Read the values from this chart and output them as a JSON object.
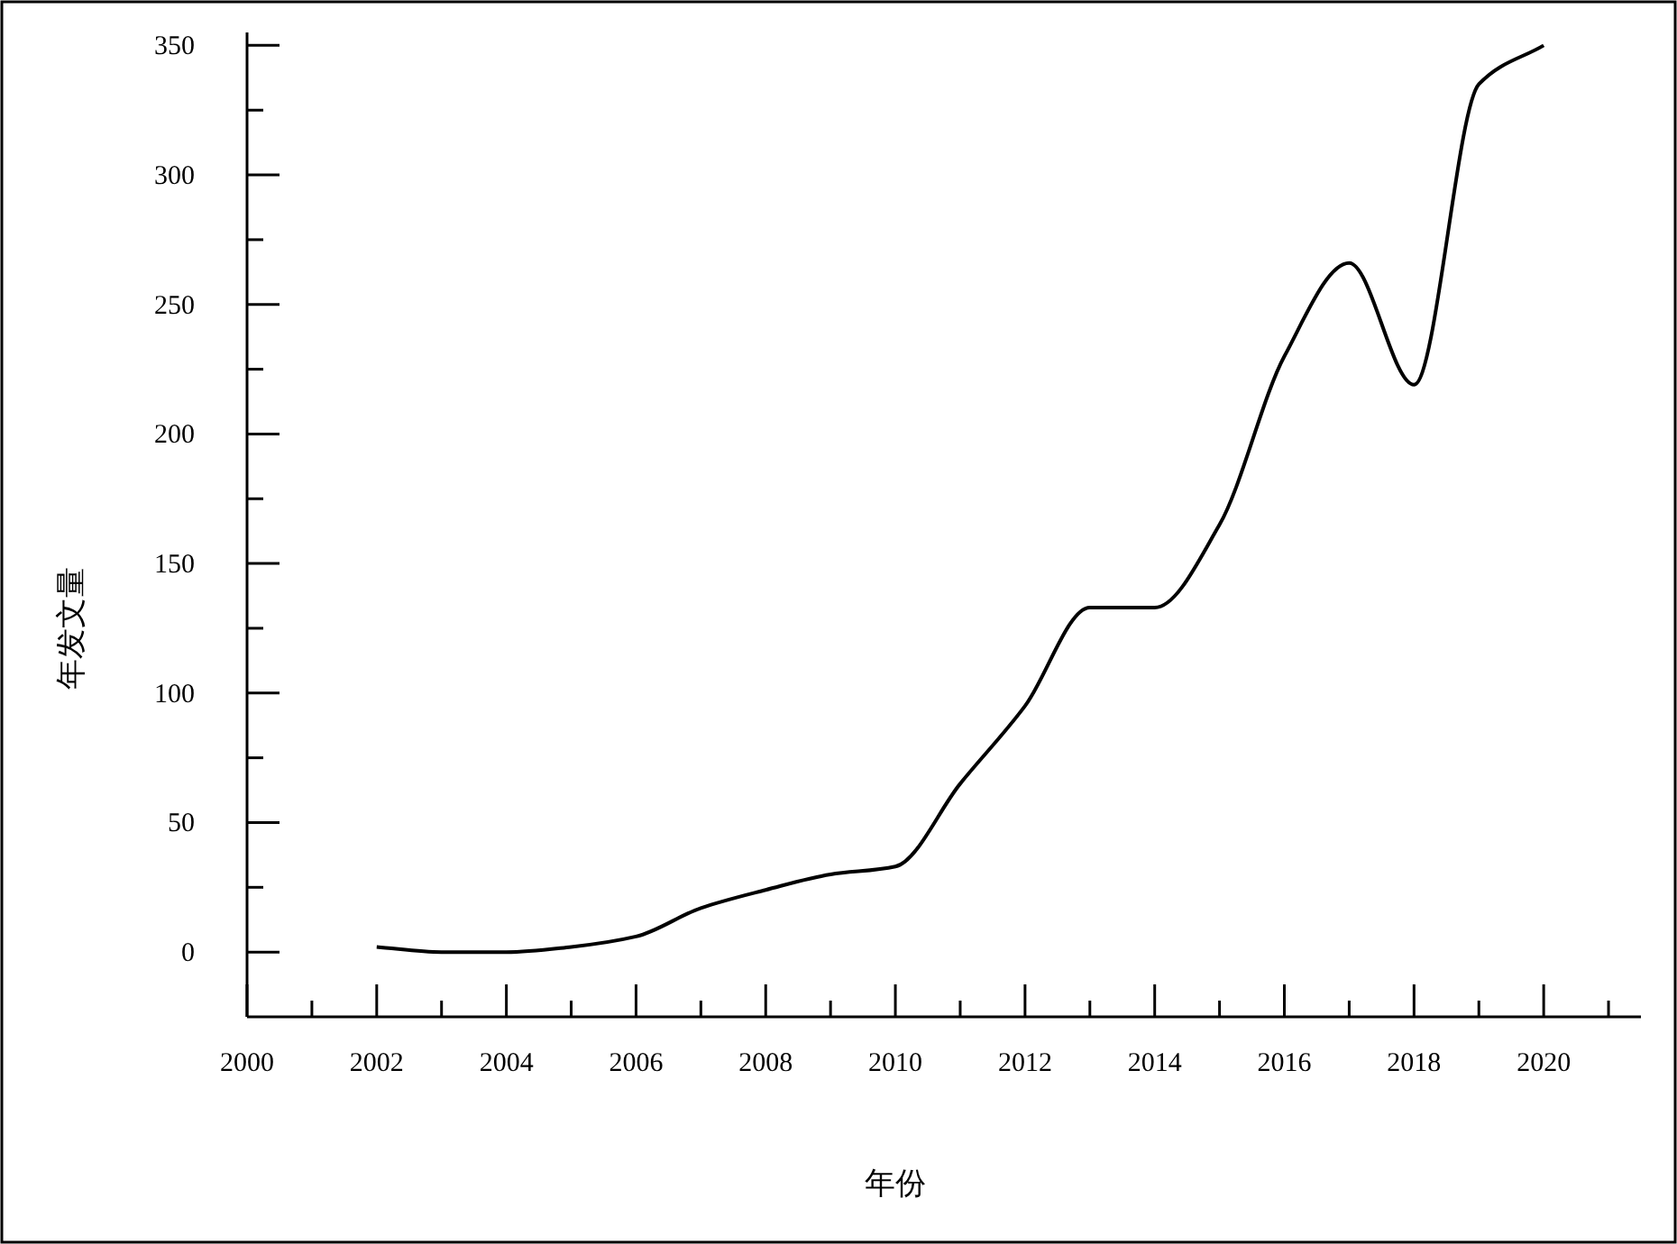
{
  "chart_data": {
    "type": "line",
    "xlabel": "年份",
    "ylabel": "年发文量",
    "x": [
      2002,
      2003,
      2004,
      2005,
      2006,
      2007,
      2008,
      2009,
      2010,
      2011,
      2012,
      2013,
      2014,
      2015,
      2016,
      2017,
      2018,
      2019,
      2020
    ],
    "series": [
      {
        "color": "#000000",
        "values": [
          2,
          0,
          0,
          2,
          6,
          17,
          24,
          30,
          33,
          65,
          95,
          133,
          133,
          165,
          230,
          266,
          219,
          335,
          350
        ]
      }
    ],
    "xlim": [
      2000,
      2021.5
    ],
    "ylim": [
      -25,
      355
    ],
    "xticks": [
      2000,
      {
        "value": 2001,
        "label": null
      },
      2002,
      {
        "value": 2003,
        "label": null
      },
      2004,
      {
        "value": 2005,
        "label": null
      },
      2006,
      {
        "value": 2007,
        "label": null
      },
      2008,
      {
        "value": 2009,
        "label": null
      },
      2010,
      {
        "value": 2011,
        "label": null
      },
      2012,
      {
        "value": 2013,
        "label": null
      },
      2014,
      {
        "value": 2015,
        "label": null
      },
      2016,
      {
        "value": 2017,
        "label": null
      },
      2018,
      {
        "value": 2019,
        "label": null
      },
      2020,
      {
        "value": 2021,
        "label": null
      }
    ],
    "yticks": [
      0,
      {
        "value": 25,
        "label": null
      },
      50,
      {
        "value": 75,
        "label": null
      },
      100,
      {
        "value": 125,
        "label": null
      },
      150,
      {
        "value": 175,
        "label": null
      },
      200,
      {
        "value": 225,
        "label": null
      },
      250,
      {
        "value": 275,
        "label": null
      },
      300,
      {
        "value": 325,
        "label": null
      },
      350
    ],
    "grid": false,
    "marker": "none",
    "line_style": "solid"
  }
}
